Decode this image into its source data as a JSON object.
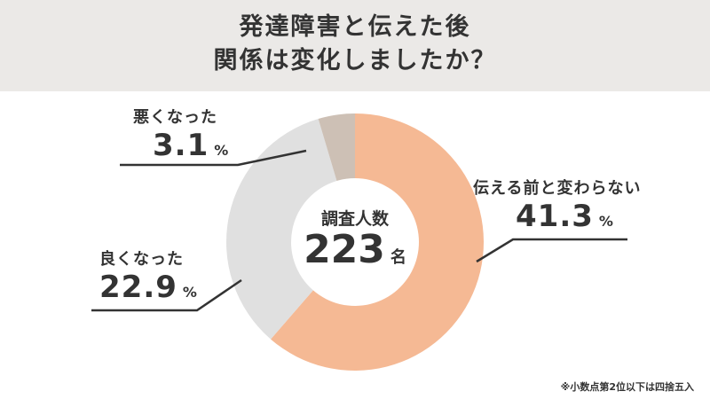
{
  "title": {
    "line1": "発達障害と伝えた後",
    "line2": "関係は変化しましたか？"
  },
  "center": {
    "label": "調査人数",
    "value": "223",
    "unit": "名"
  },
  "note": "※小数点第2位以下は四捨五入",
  "chart_data": {
    "type": "pie",
    "donut": true,
    "categories": [
      "伝える前と変わらない",
      "良くなった",
      "悪くなった"
    ],
    "values": [
      41.3,
      22.9,
      3.1
    ],
    "value_labels": [
      "41.3",
      "22.9",
      "3.1"
    ],
    "unit": "%",
    "colors": [
      "#f5b994",
      "#e0e0e0",
      "#cdc0b5"
    ]
  }
}
